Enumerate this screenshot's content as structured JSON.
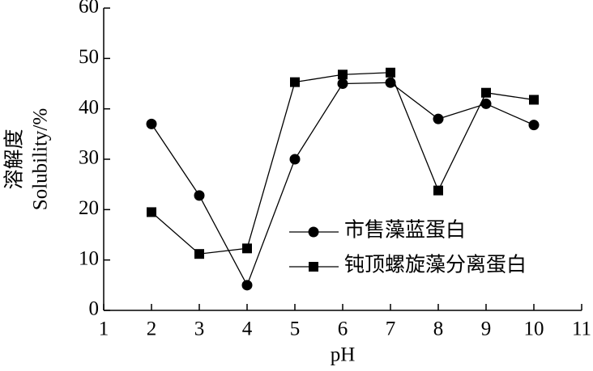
{
  "chart_data": {
    "type": "line",
    "x_label": "pH",
    "y_label": [
      "溶解度",
      "Solubility/%"
    ],
    "x": [
      2,
      3,
      4,
      5,
      6,
      7,
      8,
      9,
      10
    ],
    "series": [
      {
        "name": "市售藻蓝蛋白",
        "color": "#000000",
        "marker": "circle",
        "values": [
          37,
          22.8,
          5,
          30,
          45,
          45.2,
          38,
          41,
          36.8
        ]
      },
      {
        "name": "钝顶螺旋藻分离蛋白",
        "color": "#000000",
        "marker": "square",
        "values": [
          19.5,
          11.2,
          12.3,
          45.3,
          46.8,
          47.2,
          23.8,
          43.2,
          41.8
        ]
      }
    ],
    "xlim": [
      1,
      11
    ],
    "xticks": [
      1,
      2,
      3,
      4,
      5,
      6,
      7,
      8,
      9,
      10,
      11
    ],
    "ylim": [
      0,
      60
    ],
    "yticks": [
      0,
      10,
      20,
      30,
      40,
      50,
      60
    ],
    "grid": false
  }
}
